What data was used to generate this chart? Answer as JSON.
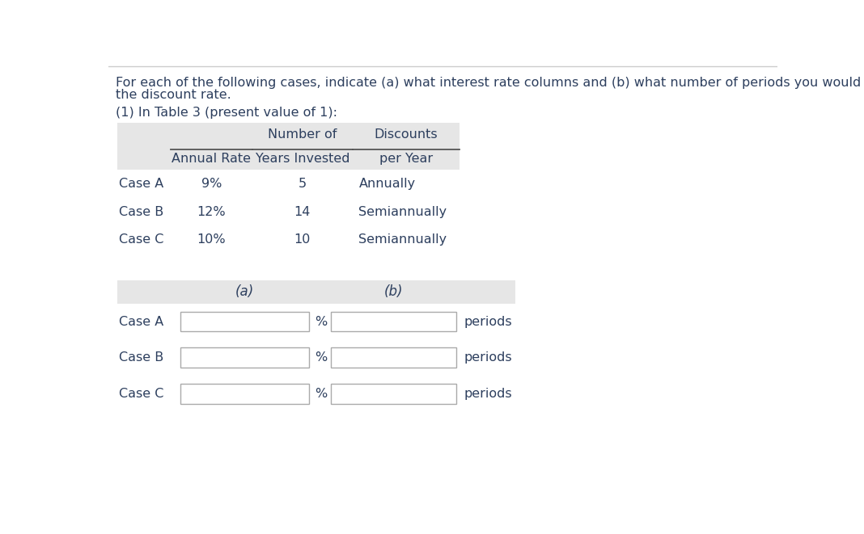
{
  "title_line1": "For each of the following cases, indicate (a) what interest rate columns and (b) what number of periods you would refer to in looking up",
  "title_line2": "the discount rate.",
  "subtitle_text": "(1) In Table 3 (present value of 1):",
  "table1_rows": [
    [
      "Case A",
      "9%",
      "5",
      "Annually"
    ],
    [
      "Case B",
      "12%",
      "14",
      "Semiannually"
    ],
    [
      "Case C",
      "10%",
      "10",
      "Semiannually"
    ]
  ],
  "table2_rows": [
    "Case A",
    "Case B",
    "Case C"
  ],
  "bg_color": "#ffffff",
  "text_color": "#2d3f5e",
  "table_header_bg": "#e6e6e6",
  "input_box_color": "#ffffff",
  "input_box_border": "#aaaaaa"
}
